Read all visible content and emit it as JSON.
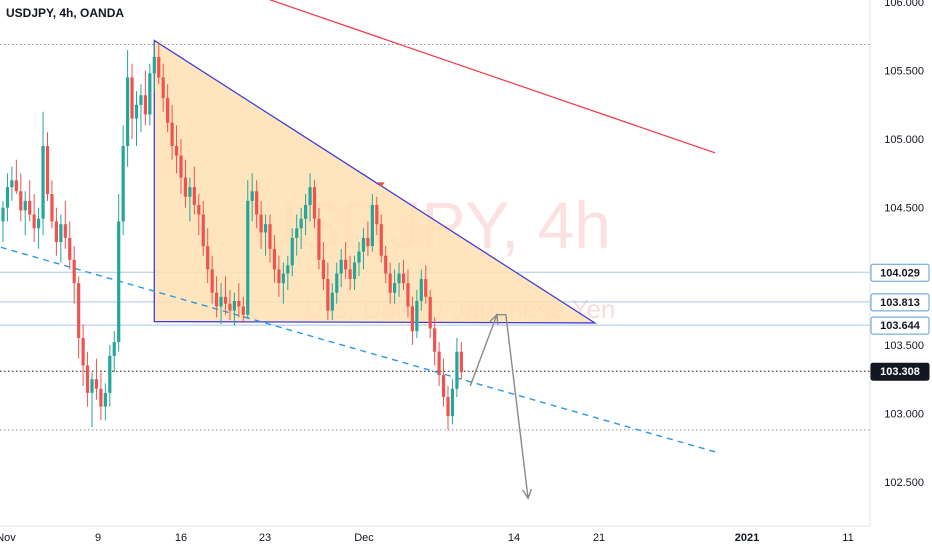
{
  "header": {
    "symbol_title": "USDJPY, 4h, OANDA"
  },
  "watermark": {
    "main": "USDJPY, 4h",
    "sub": "U.S. Dollar / Japanese Yen"
  },
  "chart_data": {
    "type": "candlestick",
    "symbol": "USDJPY",
    "interval": "4h",
    "source": "OANDA",
    "ylim": [
      102.2,
      106.1
    ],
    "y_ticks": [
      {
        "value": 106.0,
        "label": "106.000"
      },
      {
        "value": 105.5,
        "label": "105.500"
      },
      {
        "value": 105.0,
        "label": "105.000"
      },
      {
        "value": 104.5,
        "label": "104.500"
      },
      {
        "value": 103.5,
        "label": "103.500"
      },
      {
        "value": 103.0,
        "label": "103.000"
      },
      {
        "value": 102.5,
        "label": "102.500"
      }
    ],
    "x_ticks": [
      {
        "label": "Nov",
        "bold": false
      },
      {
        "label": "9",
        "bold": false
      },
      {
        "label": "16",
        "bold": false
      },
      {
        "label": "23",
        "bold": false
      },
      {
        "label": "Dec",
        "bold": false
      },
      {
        "label": "14",
        "bold": false
      },
      {
        "label": "21",
        "bold": false
      },
      {
        "label": "2021",
        "bold": true
      },
      {
        "label": "11",
        "bold": false
      }
    ],
    "price_badges": [
      {
        "value": 104.029,
        "label": "104.029",
        "bg": "#ffffff",
        "fg": "#131722",
        "border": "#5b9bd5"
      },
      {
        "value": 103.813,
        "label": "103.813",
        "bg": "#ffffff",
        "fg": "#131722",
        "border": "#5b9bd5"
      },
      {
        "value": 103.644,
        "label": "103.644",
        "bg": "#ffffff",
        "fg": "#131722",
        "border": "#5b9bd5"
      },
      {
        "value": 103.308,
        "label": "103.308",
        "bg": "#131722",
        "fg": "#ffffff",
        "border": "#131722"
      }
    ],
    "horizontal_levels": [
      {
        "value": 105.69,
        "style": "dotted",
        "color": "#9598a1"
      },
      {
        "value": 104.029,
        "style": "solid",
        "color": "#a9c7ec"
      },
      {
        "value": 103.813,
        "style": "solid",
        "color": "#a9c7ec"
      },
      {
        "value": 103.644,
        "style": "solid",
        "color": "#a9c7ec"
      },
      {
        "value": 103.308,
        "style": "dotted",
        "color": "#131722"
      },
      {
        "value": 102.88,
        "style": "dotted",
        "color": "#9598a1"
      }
    ],
    "colors": {
      "up": "#26a69a",
      "down": "#ef5350",
      "triangle_fill": "#ffe0b2",
      "triangle_stroke": "#3f3fd8",
      "resistance_line": "#f23645",
      "trend_dashed": "#2a9ae0",
      "projection": "#8a8a8a"
    },
    "candles": [
      [
        104.4,
        104.55,
        104.25,
        104.5
      ],
      [
        104.5,
        104.75,
        104.4,
        104.65
      ],
      [
        104.65,
        104.8,
        104.55,
        104.7
      ],
      [
        104.7,
        104.85,
        104.6,
        104.62
      ],
      [
        104.62,
        104.75,
        104.4,
        104.48
      ],
      [
        104.48,
        104.62,
        104.3,
        104.55
      ],
      [
        104.55,
        104.7,
        104.4,
        104.45
      ],
      [
        104.45,
        104.6,
        104.25,
        104.35
      ],
      [
        104.35,
        104.5,
        104.2,
        104.42
      ],
      [
        104.42,
        105.2,
        104.3,
        104.95
      ],
      [
        104.95,
        105.05,
        104.55,
        104.6
      ],
      [
        104.6,
        104.7,
        104.35,
        104.4
      ],
      [
        104.4,
        104.5,
        104.15,
        104.25
      ],
      [
        104.25,
        104.45,
        104.1,
        104.38
      ],
      [
        104.38,
        104.55,
        104.2,
        104.28
      ],
      [
        104.28,
        104.4,
        104.05,
        104.12
      ],
      [
        104.12,
        104.22,
        103.8,
        103.95
      ],
      [
        103.95,
        104.0,
        103.4,
        103.55
      ],
      [
        103.55,
        103.65,
        103.2,
        103.35
      ],
      [
        103.35,
        103.45,
        103.05,
        103.15
      ],
      [
        103.15,
        103.3,
        102.9,
        103.25
      ],
      [
        103.25,
        103.4,
        103.1,
        103.18
      ],
      [
        103.18,
        103.3,
        102.95,
        103.05
      ],
      [
        103.05,
        103.22,
        102.95,
        103.15
      ],
      [
        103.15,
        103.5,
        103.05,
        103.42
      ],
      [
        103.42,
        103.6,
        103.3,
        103.52
      ],
      [
        103.52,
        104.6,
        103.45,
        104.4
      ],
      [
        104.4,
        105.1,
        104.3,
        104.95
      ],
      [
        104.95,
        105.65,
        104.8,
        105.45
      ],
      [
        105.45,
        105.55,
        105.0,
        105.15
      ],
      [
        105.15,
        105.35,
        104.95,
        105.25
      ],
      [
        105.25,
        105.4,
        105.05,
        105.32
      ],
      [
        105.32,
        105.5,
        105.1,
        105.18
      ],
      [
        105.18,
        105.55,
        105.1,
        105.48
      ],
      [
        105.48,
        105.7,
        105.35,
        105.6
      ],
      [
        105.6,
        105.7,
        105.4,
        105.45
      ],
      [
        105.45,
        105.55,
        105.2,
        105.3
      ],
      [
        105.3,
        105.4,
        105.05,
        105.12
      ],
      [
        105.12,
        105.25,
        104.85,
        104.95
      ],
      [
        104.95,
        105.1,
        104.75,
        104.88
      ],
      [
        104.88,
        105.0,
        104.6,
        104.72
      ],
      [
        104.72,
        104.85,
        104.5,
        104.58
      ],
      [
        104.58,
        104.72,
        104.4,
        104.65
      ],
      [
        104.65,
        104.8,
        104.45,
        104.52
      ],
      [
        104.52,
        104.6,
        104.3,
        104.45
      ],
      [
        104.45,
        104.55,
        104.15,
        104.22
      ],
      [
        104.22,
        104.35,
        103.95,
        104.05
      ],
      [
        104.05,
        104.15,
        103.8,
        103.88
      ],
      [
        103.88,
        104.0,
        103.7,
        103.78
      ],
      [
        103.78,
        103.95,
        103.65,
        103.85
      ],
      [
        103.85,
        104.0,
        103.72,
        103.8
      ],
      [
        103.8,
        103.9,
        103.68,
        103.75
      ],
      [
        103.75,
        103.88,
        103.64,
        103.82
      ],
      [
        103.82,
        103.95,
        103.7,
        103.78
      ],
      [
        103.78,
        103.85,
        103.66,
        103.72
      ],
      [
        103.72,
        104.7,
        103.7,
        104.55
      ],
      [
        104.55,
        104.75,
        104.4,
        104.62
      ],
      [
        104.62,
        104.7,
        104.35,
        104.45
      ],
      [
        104.45,
        104.55,
        104.2,
        104.32
      ],
      [
        104.32,
        104.45,
        104.15,
        104.38
      ],
      [
        104.38,
        104.45,
        104.1,
        104.2
      ],
      [
        104.2,
        104.3,
        103.95,
        104.05
      ],
      [
        104.05,
        104.15,
        103.85,
        103.95
      ],
      [
        103.95,
        104.1,
        103.8,
        104.02
      ],
      [
        104.02,
        104.15,
        103.9,
        104.08
      ],
      [
        104.08,
        104.35,
        104.0,
        104.28
      ],
      [
        104.28,
        104.45,
        104.15,
        104.35
      ],
      [
        104.35,
        104.5,
        104.2,
        104.42
      ],
      [
        104.42,
        104.6,
        104.3,
        104.52
      ],
      [
        104.52,
        104.75,
        104.4,
        104.65
      ],
      [
        104.65,
        104.7,
        104.35,
        104.42
      ],
      [
        104.42,
        104.5,
        104.05,
        104.12
      ],
      [
        104.12,
        104.25,
        103.9,
        103.98
      ],
      [
        103.98,
        104.1,
        103.68,
        103.75
      ],
      [
        103.75,
        103.95,
        103.68,
        103.88
      ],
      [
        103.88,
        104.1,
        103.8,
        104.02
      ],
      [
        104.02,
        104.2,
        103.92,
        104.12
      ],
      [
        104.12,
        104.25,
        103.98,
        104.05
      ],
      [
        104.05,
        104.15,
        103.9,
        103.98
      ],
      [
        103.98,
        104.15,
        103.9,
        104.1
      ],
      [
        104.1,
        104.25,
        104.0,
        104.18
      ],
      [
        104.18,
        104.35,
        104.05,
        104.28
      ],
      [
        104.28,
        104.4,
        104.15,
        104.22
      ],
      [
        104.22,
        104.6,
        104.18,
        104.52
      ],
      [
        104.52,
        104.58,
        104.3,
        104.38
      ],
      [
        104.38,
        104.45,
        104.1,
        104.15
      ],
      [
        104.15,
        104.22,
        103.95,
        104.02
      ],
      [
        104.02,
        104.1,
        103.8,
        103.88
      ],
      [
        103.88,
        104.05,
        103.8,
        103.95
      ],
      [
        103.95,
        104.1,
        103.85,
        104.02
      ],
      [
        104.02,
        104.12,
        103.9,
        103.95
      ],
      [
        103.95,
        104.05,
        103.7,
        103.78
      ],
      [
        103.78,
        103.85,
        103.5,
        103.6
      ],
      [
        103.6,
        103.9,
        103.55,
        103.82
      ],
      [
        103.82,
        104.05,
        103.75,
        103.98
      ],
      [
        103.98,
        104.08,
        103.8,
        103.85
      ],
      [
        103.85,
        103.9,
        103.55,
        103.62
      ],
      [
        103.62,
        103.7,
        103.35,
        103.45
      ],
      [
        103.45,
        103.52,
        103.2,
        103.28
      ],
      [
        103.28,
        103.4,
        103.05,
        103.12
      ],
      [
        103.12,
        103.2,
        102.88,
        102.98
      ],
      [
        102.98,
        103.25,
        102.92,
        103.18
      ],
      [
        103.18,
        103.55,
        103.12,
        103.45
      ],
      [
        103.45,
        103.52,
        103.25,
        103.3
      ]
    ],
    "pattern": {
      "kind": "descending-triangle",
      "apex_top": {
        "candle": 34,
        "value": 105.72
      },
      "base_left": {
        "candle": 34,
        "value": 103.67
      },
      "apex_right": {
        "candle": 133,
        "value": 103.66
      }
    },
    "resistance_line": {
      "from": {
        "candle": 48,
        "value": 106.15
      },
      "to": {
        "candle": 160,
        "value": 104.9
      }
    },
    "trend_dashed": {
      "from": {
        "candle": -10,
        "value": 104.3
      },
      "to": {
        "candle": 160,
        "value": 102.72
      }
    },
    "peak_marker": {
      "candle": 85,
      "value": 104.62
    },
    "projection": [
      {
        "candle": 105,
        "value": 103.2
      },
      {
        "candle": 111,
        "value": 103.72
      },
      {
        "candle": 113,
        "value": 103.72
      },
      {
        "candle": 118,
        "value": 102.38
      }
    ]
  }
}
